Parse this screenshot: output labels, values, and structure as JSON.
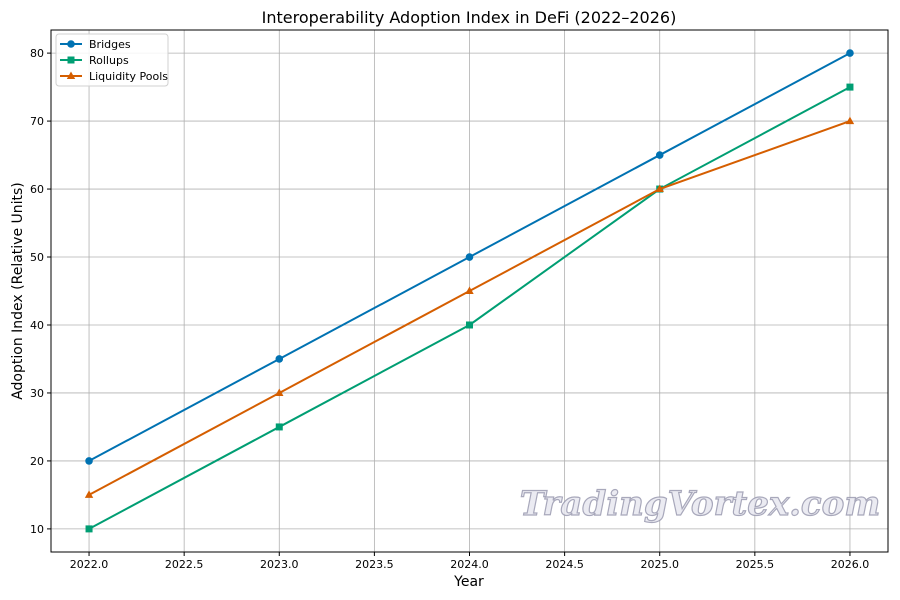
{
  "chart_data": {
    "type": "line",
    "title": "Interoperability Adoption Index in DeFi (2022–2026)",
    "xlabel": "Year",
    "ylabel": "Adoption Index (Relative Units)",
    "x": [
      2022,
      2023,
      2024,
      2025,
      2026
    ],
    "xlim": [
      2021.8,
      2026.2
    ],
    "ylim": [
      6.6,
      83.4
    ],
    "xticks": [
      "2022.0",
      "2022.5",
      "2023.0",
      "2023.5",
      "2024.0",
      "2024.5",
      "2025.0",
      "2025.5",
      "2026.0"
    ],
    "yticks": [
      "10",
      "20",
      "30",
      "40",
      "50",
      "60",
      "70",
      "80"
    ],
    "grid": true,
    "legend_position": "top-left",
    "series": [
      {
        "name": "Bridges",
        "values": [
          20,
          35,
          50,
          65,
          80
        ],
        "color": "#0072b2",
        "marker": "circle"
      },
      {
        "name": "Rollups",
        "values": [
          10,
          25,
          40,
          60,
          75
        ],
        "color": "#009e73",
        "marker": "square"
      },
      {
        "name": "Liquidity Pools",
        "values": [
          15,
          30,
          45,
          60,
          70
        ],
        "color": "#d55e00",
        "marker": "triangle"
      }
    ]
  },
  "watermark": "TradingVortex.com"
}
